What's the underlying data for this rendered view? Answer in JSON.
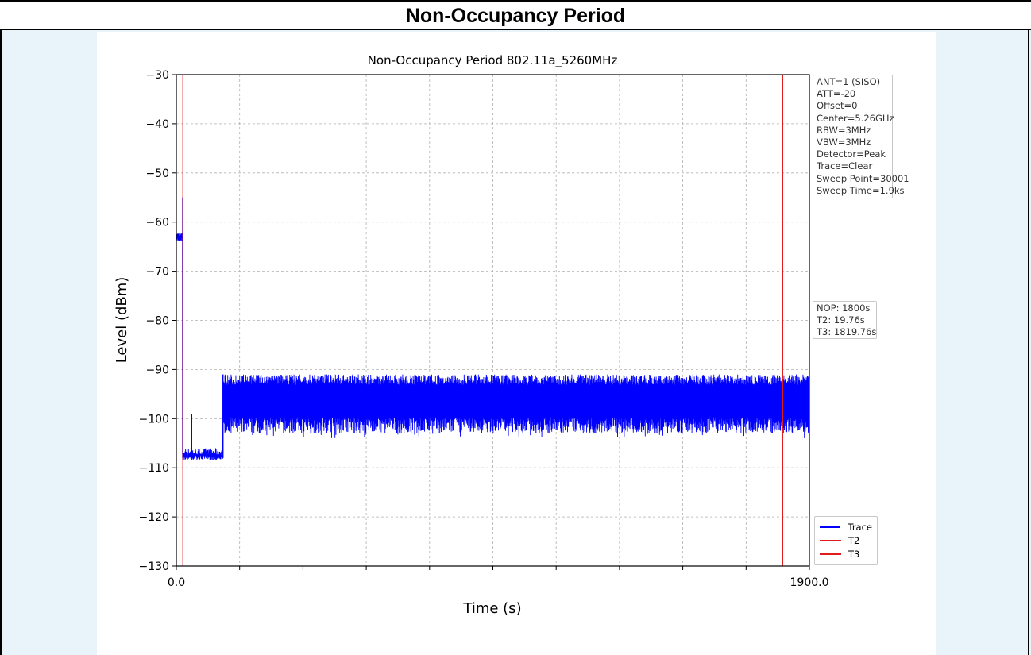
{
  "header": {
    "title": "Non-Occupancy Period"
  },
  "colors": {
    "trace": "#0000ff",
    "marker": "#e31a1c",
    "grid": "#b0b0b0"
  },
  "chart_data": {
    "type": "line",
    "title": "Non-Occupancy Period 802.11a_5260MHz",
    "xlabel": "Time (s)",
    "ylabel": "Level (dBm)",
    "xlim": [
      0.0,
      1900.0
    ],
    "ylim": [
      -130,
      -30
    ],
    "xticks": [
      0,
      190,
      380,
      570,
      760,
      950,
      1140,
      1330,
      1520,
      1710,
      1900
    ],
    "xtick_labels": [
      "0.0",
      "1900.0"
    ],
    "yticks": [
      -30,
      -40,
      -50,
      -60,
      -70,
      -80,
      -90,
      -100,
      -110,
      -120,
      -130
    ],
    "ytick_labels": [
      "−30",
      "−40",
      "−50",
      "−60",
      "−70",
      "−80",
      "−90",
      "−100",
      "−110",
      "−120",
      "−130"
    ],
    "grid": true,
    "legend_position": "bottom-right",
    "series": [
      {
        "name": "Trace",
        "segments": [
          {
            "x": [
              0,
              19
            ],
            "y_level": -63,
            "y_min": -64,
            "y_max": -62
          },
          {
            "x": [
              19,
              140
            ],
            "y_level": -107.5,
            "y_min": -108.5,
            "y_max": -106
          },
          {
            "x": [
              140,
              1900
            ],
            "y_min": -103,
            "y_max": -91
          }
        ],
        "spikes": [
          {
            "x": 19,
            "y": -55
          },
          {
            "x": 46,
            "y": -99
          },
          {
            "x": 140,
            "y": -91
          }
        ]
      },
      {
        "name": "T2",
        "x": 19.76
      },
      {
        "name": "T3",
        "x": 1819.76
      }
    ],
    "info_lines": [
      "ANT=1 (SISO)",
      "ATT=-20",
      "Offset=0",
      "Center=5.26GHz",
      "RBW=3MHz",
      "VBW=3MHz",
      "Detector=Peak",
      "Trace=Clear",
      "Sweep Point=30001",
      "Sweep Time=1.9ks"
    ],
    "nop_lines": [
      "NOP: 1800s",
      "T2: 19.76s",
      "T3: 1819.76s"
    ]
  }
}
